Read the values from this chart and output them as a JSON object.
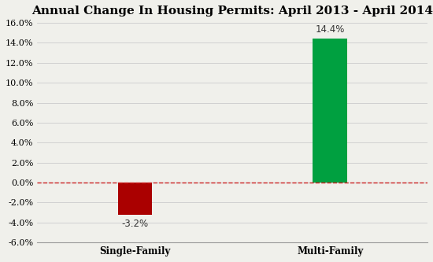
{
  "title": "Annual Change In Housing Permits: April 2013 - April 2014",
  "categories": [
    "Single-Family",
    "Multi-Family"
  ],
  "values": [
    -0.032,
    0.144
  ],
  "bar_colors": [
    "#aa0000",
    "#00a040"
  ],
  "bar_labels": [
    "-3.2%",
    "14.4%"
  ],
  "ylim": [
    -0.06,
    0.16
  ],
  "yticks": [
    -0.06,
    -0.04,
    -0.02,
    0.0,
    0.02,
    0.04,
    0.06,
    0.08,
    0.1,
    0.12,
    0.14,
    0.16
  ],
  "ytick_labels": [
    "-6.0%",
    "-4.0%",
    "-2.0%",
    "0.0%",
    "2.0%",
    "4.0%",
    "6.0%",
    "8.0%",
    "10.0%",
    "12.0%",
    "14.0%",
    "16.0%"
  ],
  "hline_color": "#cc2222",
  "hline_style": "--",
  "background_color": "#f0f0eb",
  "plot_bg_color": "#f0f0eb",
  "title_fontsize": 11,
  "label_fontsize": 8.5,
  "tick_fontsize": 8,
  "bar_width": 0.35,
  "x_positions": [
    1,
    3
  ],
  "xlim": [
    0,
    4
  ]
}
